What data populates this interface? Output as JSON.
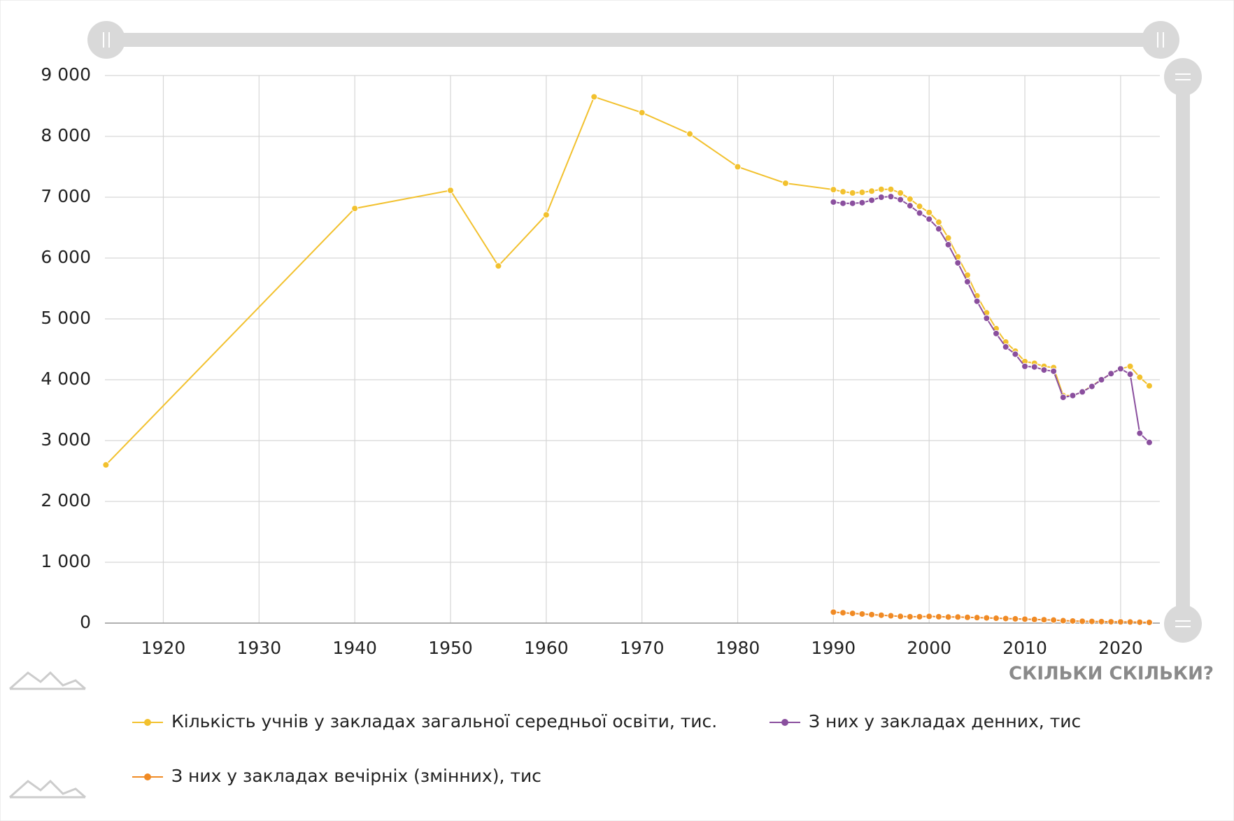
{
  "chart_data": {
    "type": "line",
    "xlim": [
      1913.9,
      2024.1
    ],
    "xticks": [
      1920,
      1930,
      1940,
      1950,
      1960,
      1970,
      1980,
      1990,
      2000,
      2010,
      2020
    ],
    "ylim": [
      0,
      9000
    ],
    "yticks": [
      0,
      {
        "value": 1000,
        "label": "1 000"
      },
      {
        "value": 2000,
        "label": "2 000"
      },
      {
        "value": 3000,
        "label": "3 000"
      },
      {
        "value": 4000,
        "label": "4 000"
      },
      {
        "value": 5000,
        "label": "5 000"
      },
      {
        "value": 6000,
        "label": "6 000"
      },
      {
        "value": 7000,
        "label": "7 000"
      },
      {
        "value": 8000,
        "label": "8 000"
      },
      {
        "value": 9000,
        "label": "9 000"
      }
    ],
    "grid": true,
    "brand": "СКІЛЬКИ СКІЛЬКИ?",
    "series": [
      {
        "name": "Кількість учнів у закладах загальної середньої освіти, тис.",
        "color": "#f2c12e",
        "x": [
          1914,
          1940,
          1950,
          1955,
          1960,
          1965,
          1970,
          1975,
          1980,
          1985,
          1990,
          1991,
          1992,
          1993,
          1994,
          1995,
          1996,
          1997,
          1998,
          1999,
          2000,
          2001,
          2002,
          2003,
          2004,
          2005,
          2006,
          2007,
          2008,
          2009,
          2010,
          2011,
          2012,
          2013,
          2014,
          2015,
          2016,
          2017,
          2018,
          2019,
          2020,
          2021,
          2022,
          2023
        ],
        "values": [
          2600,
          6815,
          7112,
          5870,
          6710,
          8650,
          8390,
          8040,
          7500,
          7230,
          7125,
          7090,
          7070,
          7080,
          7100,
          7130,
          7130,
          7070,
          6970,
          6850,
          6750,
          6590,
          6330,
          6020,
          5720,
          5380,
          5100,
          4840,
          4620,
          4470,
          4300,
          4270,
          4220,
          4200,
          3740,
          3740,
          3800,
          3900,
          4000,
          4100,
          4180,
          4220,
          4040,
          3900
        ]
      },
      {
        "name": "З них у закладах денних, тис",
        "color": "#8a4f9e",
        "x": [
          1990,
          1991,
          1992,
          1993,
          1994,
          1995,
          1996,
          1997,
          1998,
          1999,
          2000,
          2001,
          2002,
          2003,
          2004,
          2005,
          2006,
          2007,
          2008,
          2009,
          2010,
          2011,
          2012,
          2013,
          2014,
          2015,
          2016,
          2017,
          2018,
          2019,
          2020,
          2021,
          2022,
          2023
        ],
        "values": [
          6920,
          6900,
          6900,
          6910,
          6950,
          7000,
          7010,
          6960,
          6860,
          6740,
          6640,
          6480,
          6220,
          5920,
          5610,
          5290,
          5010,
          4760,
          4540,
          4420,
          4220,
          4210,
          4160,
          4140,
          3710,
          3740,
          3800,
          3890,
          4000,
          4100,
          4180,
          4090,
          3120,
          2970
        ]
      },
      {
        "name": "З них у закладах вечірніх (змінних), тис",
        "color": "#f08a24",
        "x": [
          1990,
          1991,
          1992,
          1993,
          1994,
          1995,
          1996,
          1997,
          1998,
          1999,
          2000,
          2001,
          2002,
          2003,
          2004,
          2005,
          2006,
          2007,
          2008,
          2009,
          2010,
          2011,
          2012,
          2013,
          2014,
          2015,
          2016,
          2017,
          2018,
          2019,
          2020,
          2021,
          2022,
          2023
        ],
        "values": [
          180,
          170,
          160,
          150,
          140,
          130,
          120,
          110,
          105,
          105,
          110,
          105,
          100,
          100,
          95,
          90,
          85,
          80,
          75,
          70,
          65,
          60,
          55,
          50,
          40,
          35,
          30,
          28,
          25,
          22,
          20,
          18,
          15,
          12
        ]
      }
    ]
  }
}
